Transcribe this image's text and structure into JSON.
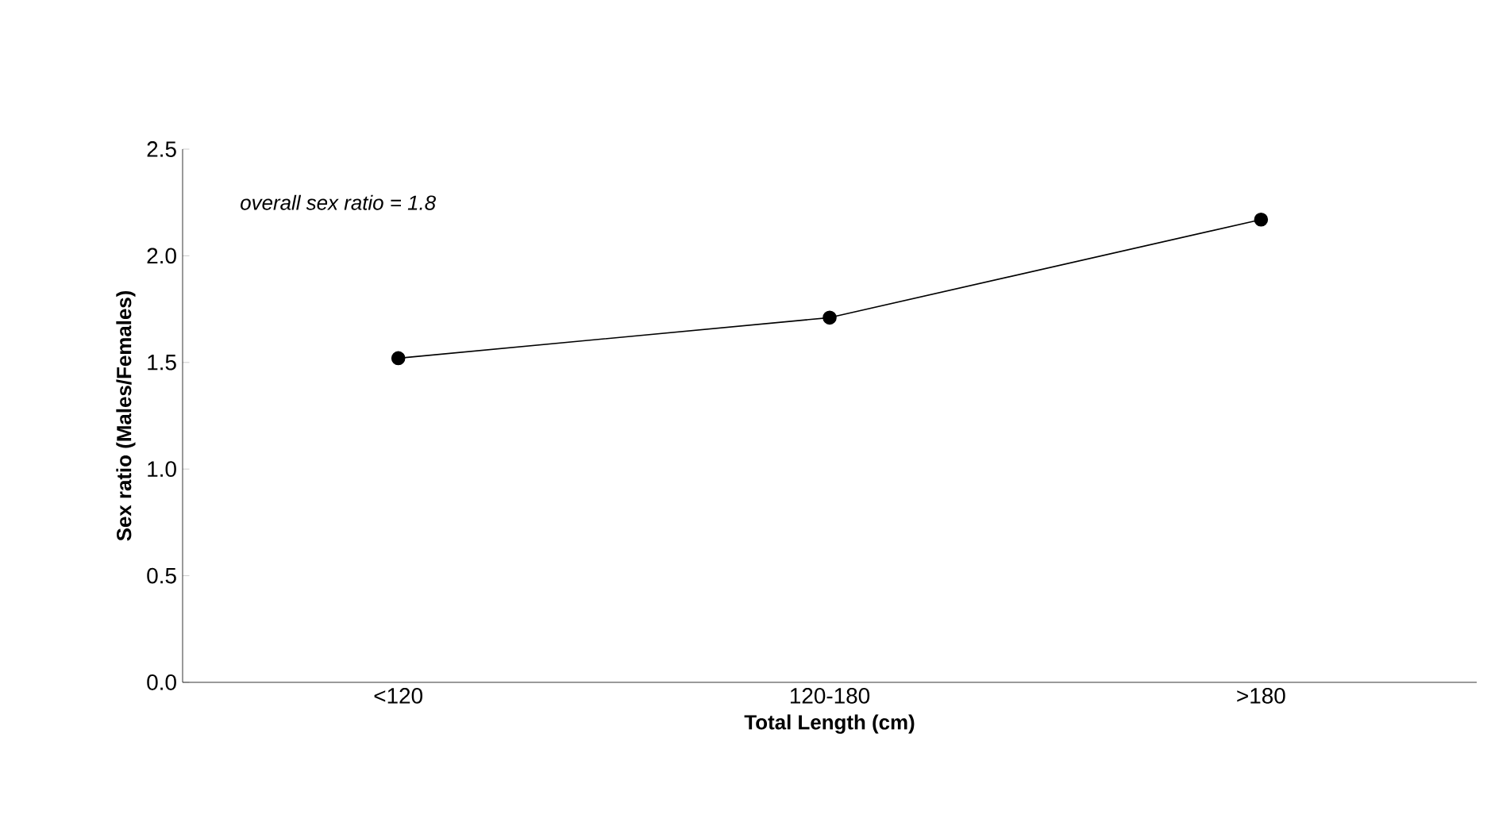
{
  "chart_data": {
    "type": "line",
    "xlabel": "Total Length (cm)",
    "ylabel": "Sex ratio (Males/Females)",
    "categories": [
      "<120",
      "120-180",
      ">180"
    ],
    "values": [
      1.52,
      1.71,
      2.17
    ],
    "color": "#000000",
    "marker": "circle",
    "line_style": "solid",
    "ylim": [
      0,
      2.5
    ],
    "yticks": [
      {
        "value": 0,
        "label": "0.0"
      },
      0.5,
      {
        "value": 1,
        "label": "1.0"
      },
      1.5,
      {
        "value": 2,
        "label": "2.0"
      },
      2.5
    ],
    "annotations": [
      "overall sex ratio = 1.8"
    ]
  }
}
